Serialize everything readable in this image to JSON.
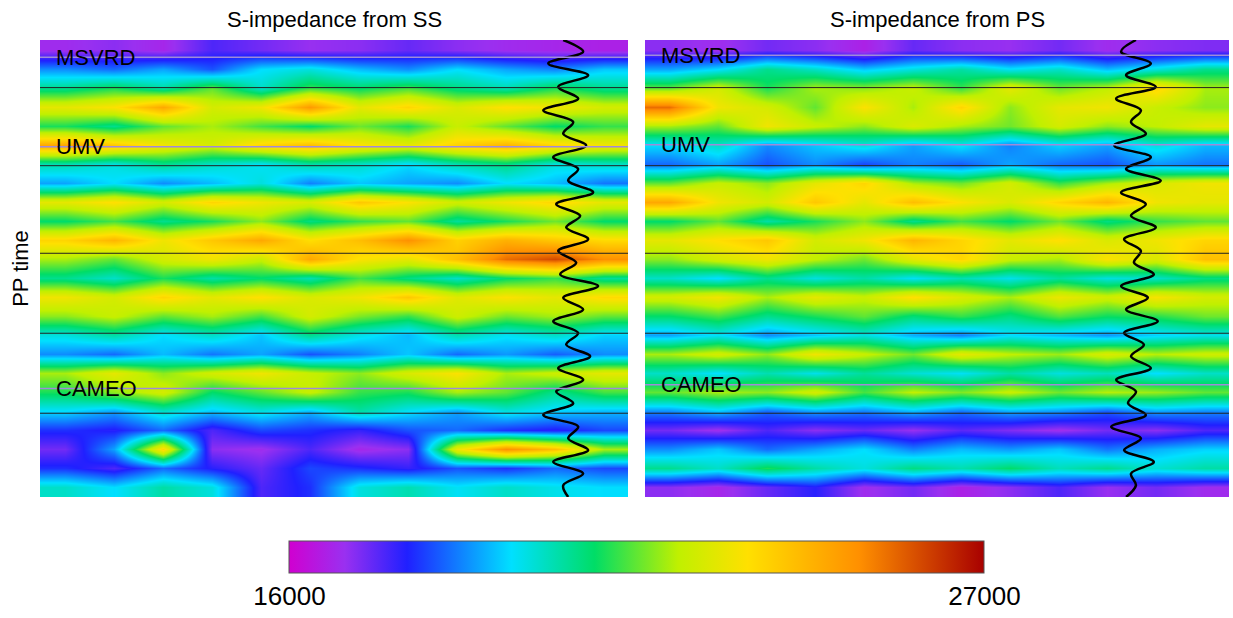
{
  "chart_data": {
    "type": "heatmap",
    "y_label": "PP time",
    "tick_labels": false,
    "ylim": [
      24,
      0
    ],
    "colorbar": {
      "range": [
        16000,
        27000
      ],
      "ticks": [
        16000,
        27000
      ]
    },
    "panels": [
      {
        "title": "S-impedance from SS",
        "horizons": [
          {
            "label": "MSVRD",
            "value": 0.9
          },
          {
            "label": "UMV",
            "value": 5.6
          },
          {
            "label": "CAMEO",
            "value": 18.3
          }
        ],
        "time_lines": [
          2.5,
          6.6,
          11.2,
          15.4,
          19.6
        ],
        "well_log": {
          "xlim": [
            -31000,
            28000
          ],
          "values": [
            21500,
            23500,
            20000,
            24000,
            21000,
            23000,
            19500,
            22500,
            21500,
            23800,
            20500,
            23000,
            22000,
            24500,
            20800,
            23200,
            21800,
            24000,
            21000,
            22800,
            21200,
            25000,
            21500,
            23500,
            20500,
            23000,
            21800,
            24200,
            21000,
            23500,
            20800,
            22500,
            19500,
            23000,
            22000,
            24000,
            20500,
            23500,
            21500,
            22000
          ]
        },
        "cells": [
          [
            16800,
            17000,
            16700,
            17500,
            17200,
            16900,
            17000,
            17300,
            17000,
            16800,
            16700,
            16600
          ],
          [
            18800,
            18500,
            19000,
            18300,
            19500,
            19800,
            19200,
            18800,
            19500,
            19000,
            18700,
            19300
          ],
          [
            20500,
            21000,
            20300,
            21500,
            20000,
            21200,
            20800,
            21300,
            20600,
            20200,
            21000,
            20500
          ],
          [
            22800,
            23200,
            24500,
            22500,
            23000,
            24800,
            22800,
            23500,
            22600,
            23300,
            23000,
            22500
          ],
          [
            21000,
            20500,
            21500,
            22000,
            21300,
            20800,
            21600,
            21000,
            22300,
            21500,
            20800,
            21200
          ],
          [
            24500,
            23800,
            23000,
            22500,
            23500,
            24000,
            23200,
            22800,
            23600,
            24200,
            23500,
            23000
          ],
          [
            20200,
            19800,
            20500,
            20000,
            19600,
            20300,
            20000,
            19500,
            20200,
            20600,
            19800,
            20000
          ],
          [
            19000,
            19500,
            18800,
            19200,
            19800,
            18700,
            19300,
            19000,
            18800,
            19500,
            19200,
            18600
          ],
          [
            22800,
            23300,
            22500,
            23500,
            23000,
            22600,
            23800,
            23200,
            22400,
            23000,
            23500,
            22800
          ],
          [
            20800,
            21300,
            20500,
            21000,
            21800,
            20600,
            21200,
            21500,
            20400,
            21000,
            21600,
            20800
          ],
          [
            23500,
            24200,
            23000,
            23800,
            24500,
            23300,
            24000,
            25000,
            23600,
            24300,
            23800,
            23400
          ],
          [
            22000,
            21500,
            22500,
            23000,
            22300,
            24500,
            23200,
            22800,
            24000,
            25500,
            26000,
            25000
          ],
          [
            20500,
            20000,
            21000,
            20300,
            20800,
            20200,
            21300,
            20600,
            20000,
            20800,
            21200,
            20400
          ],
          [
            23000,
            22500,
            23500,
            22800,
            23300,
            22600,
            23000,
            23800,
            22700,
            23200,
            22800,
            23400
          ],
          [
            21800,
            22300,
            21500,
            22000,
            21300,
            22500,
            21700,
            21200,
            22400,
            21600,
            22000,
            21500
          ],
          [
            19800,
            20300,
            19500,
            20000,
            19300,
            20500,
            19700,
            19200,
            20200,
            19600,
            20000,
            19400
          ],
          [
            18800,
            18500,
            19200,
            18600,
            19000,
            18300,
            18700,
            19300,
            18500,
            18900,
            18400,
            18800
          ],
          [
            22000,
            22800,
            21800,
            22500,
            23000,
            22300,
            21800,
            22600,
            23200,
            22000,
            22400,
            22800
          ],
          [
            21000,
            21800,
            22500,
            20800,
            21500,
            22300,
            21200,
            21000,
            22000,
            21500,
            20500,
            21300
          ],
          [
            19500,
            19000,
            20000,
            19300,
            19800,
            19200,
            20300,
            19600,
            19000,
            19800,
            19400,
            19200
          ],
          [
            18000,
            17800,
            18500,
            17500,
            18200,
            18000,
            17700,
            18300,
            18500,
            18000,
            17800,
            18200
          ],
          [
            17200,
            19000,
            23500,
            17000,
            16800,
            17500,
            16700,
            17000,
            23000,
            25000,
            24000,
            22000
          ],
          [
            18000,
            17500,
            18500,
            17800,
            17300,
            18200,
            18000,
            17700,
            18300,
            18000,
            18500,
            18200
          ],
          [
            20000,
            19500,
            20300,
            19800,
            17500,
            18000,
            19800,
            20200,
            19600,
            20000,
            19700,
            19500
          ]
        ]
      },
      {
        "title": "S-impedance from PS",
        "horizons": [
          {
            "label": "MSVRD",
            "value": 0.8
          },
          {
            "label": "UMV",
            "value": 5.5
          },
          {
            "label": "CAMEO",
            "value": 18.1
          }
        ],
        "time_lines": [
          2.5,
          6.6,
          11.2,
          15.4,
          19.6
        ],
        "well_log": {
          "xlim": [
            -27600,
            31400
          ],
          "values": [
            22000,
            20500,
            23500,
            21000,
            24000,
            20000,
            22500,
            21500,
            23000,
            19800,
            23500,
            21000,
            24500,
            20500,
            23000,
            21500,
            24000,
            20800,
            22500,
            21800,
            23800,
            20500,
            23200,
            21000,
            24200,
            20800,
            22800,
            21500,
            23500,
            20000,
            22000,
            21200,
            23000,
            19500,
            22500,
            20800,
            23800,
            21500,
            22000,
            21000
          ]
        },
        "cells": [
          [
            17000,
            16800,
            17200,
            17000,
            16600,
            17300,
            17000,
            16900,
            17200,
            16800,
            17000,
            17100
          ],
          [
            19000,
            19500,
            20500,
            20000,
            19300,
            19800,
            20300,
            19600,
            20000,
            19200,
            19800,
            20500
          ],
          [
            21500,
            22500,
            21000,
            22000,
            21800,
            22300,
            21200,
            22800,
            21600,
            22200,
            23500,
            22000
          ],
          [
            25500,
            23000,
            22500,
            21500,
            23200,
            22000,
            23500,
            21800,
            22800,
            23000,
            22300,
            21800
          ],
          [
            22000,
            21500,
            23000,
            22300,
            21800,
            22600,
            22000,
            21600,
            22500,
            21800,
            22200,
            22800
          ],
          [
            19500,
            20000,
            18800,
            19300,
            19800,
            19000,
            19600,
            18700,
            19400,
            19000,
            19800,
            19200
          ],
          [
            18500,
            19000,
            18300,
            18800,
            18200,
            18700,
            18400,
            19000,
            18500,
            18300,
            18900,
            18600
          ],
          [
            21500,
            22300,
            21800,
            22800,
            23500,
            22000,
            21600,
            22500,
            21200,
            22000,
            22600,
            23000
          ],
          [
            24500,
            23000,
            22500,
            23800,
            22800,
            24000,
            23200,
            22600,
            23500,
            24200,
            23000,
            22800
          ],
          [
            20800,
            21500,
            20300,
            21000,
            21800,
            20500,
            21300,
            20800,
            21600,
            20600,
            21200,
            21500
          ],
          [
            22800,
            23300,
            23800,
            22500,
            23000,
            24200,
            23500,
            22800,
            23300,
            22600,
            23000,
            23500
          ],
          [
            21800,
            22500,
            23000,
            22200,
            21600,
            22800,
            23500,
            22300,
            22000,
            23200,
            22600,
            24000
          ],
          [
            20000,
            19500,
            20500,
            19800,
            20300,
            19600,
            20200,
            19700,
            20400,
            19800,
            20000,
            20600
          ],
          [
            22500,
            23000,
            22000,
            22800,
            22300,
            23300,
            22600,
            22000,
            22900,
            22400,
            23100,
            22500
          ],
          [
            20800,
            21300,
            20500,
            21000,
            21500,
            20700,
            21200,
            20600,
            21400,
            20900,
            21100,
            21600
          ],
          [
            19000,
            19600,
            18800,
            19300,
            19800,
            19100,
            18700,
            19500,
            19200,
            18900,
            19400,
            19700
          ],
          [
            22000,
            22500,
            21800,
            23000,
            22300,
            21600,
            22800,
            22200,
            21900,
            22600,
            22100,
            22400
          ],
          [
            20000,
            19500,
            20200,
            19700,
            20400,
            19900,
            19600,
            20300,
            19800,
            20100,
            19500,
            20000
          ],
          [
            21500,
            22000,
            21800,
            22500,
            21300,
            22200,
            21700,
            22300,
            21600,
            22100,
            21900,
            21500
          ],
          [
            18800,
            19300,
            18500,
            19000,
            18700,
            19200,
            18600,
            19100,
            18900,
            18400,
            19000,
            18800
          ],
          [
            17200,
            16800,
            17500,
            17000,
            17300,
            16900,
            17400,
            17100,
            16800,
            17200,
            17000,
            17500
          ],
          [
            18800,
            19300,
            18500,
            19000,
            19500,
            18700,
            19200,
            18900,
            19300,
            18600,
            19100,
            19400
          ],
          [
            20500,
            20000,
            21000,
            20300,
            19800,
            20600,
            20200,
            20800,
            20100,
            20500,
            19900,
            20300
          ],
          [
            17000,
            16700,
            17300,
            17800,
            16800,
            17200,
            16600,
            17000,
            17500,
            16900,
            17200,
            16800
          ]
        ]
      }
    ]
  }
}
